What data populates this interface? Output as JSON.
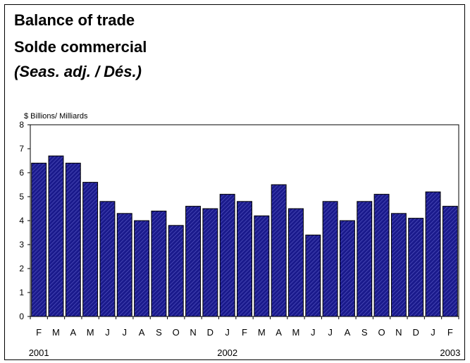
{
  "header": {
    "title": "Balance of trade",
    "title_fr": "Solde commercial",
    "subtitle": "(Seas. adj. / Dés.)"
  },
  "chart_data": {
    "type": "bar",
    "title": "Balance of trade",
    "ylabel": "$ Billions/ Milliards",
    "ylim": [
      0,
      8
    ],
    "yticks": [
      0,
      1,
      2,
      3,
      4,
      5,
      6,
      7,
      8
    ],
    "grid": false,
    "legend": "none",
    "categories": [
      "F",
      "M",
      "A",
      "M",
      "J",
      "J",
      "A",
      "S",
      "O",
      "N",
      "D",
      "J",
      "F",
      "M",
      "A",
      "M",
      "J",
      "J",
      "A",
      "S",
      "O",
      "N",
      "D",
      "J",
      "F"
    ],
    "values": [
      6.4,
      6.7,
      6.4,
      5.6,
      4.8,
      4.3,
      4.0,
      4.4,
      3.8,
      4.6,
      4.5,
      5.1,
      4.8,
      4.2,
      5.5,
      4.5,
      3.4,
      4.8,
      4.0,
      4.8,
      5.1,
      4.3,
      4.1,
      5.2,
      4.6
    ],
    "year_labels": [
      {
        "label": "2001",
        "index": 0
      },
      {
        "label": "2002",
        "index": 11
      },
      {
        "label": "2003",
        "index": 24
      }
    ],
    "colors": {
      "bar_fill": "#1a1a8c",
      "bar_hatch": "#5c5cc8",
      "bar_stroke": "#000000"
    }
  }
}
